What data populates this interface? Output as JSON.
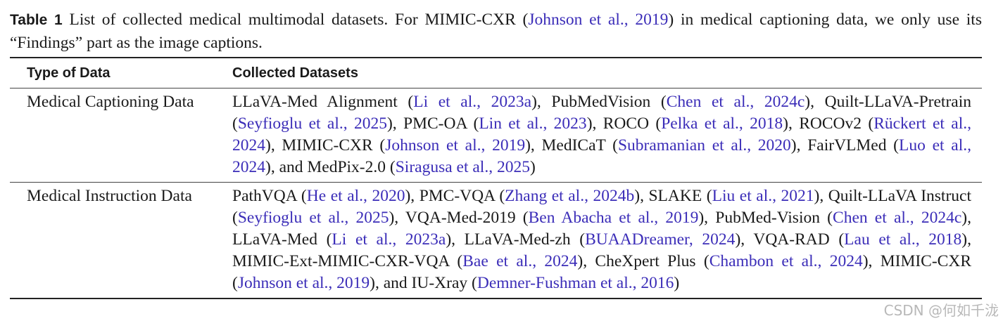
{
  "caption": {
    "label": "Table 1",
    "text_before": " List of collected medical multimodal datasets. For MIMIC-CXR (",
    "cite": "Johnson et al., 2019",
    "text_after": ") in medical captioning data, we only use its “Findings” part as the image captions."
  },
  "table": {
    "headers": [
      "Type of Data",
      "Collected Datasets"
    ],
    "rows": [
      {
        "type": "Medical Captioning Data",
        "parts": [
          {
            "t": "LLaVA-Med Alignment ("
          },
          {
            "t": "Li et al., 2023a",
            "c": true
          },
          {
            "t": "), PubMedVision ("
          },
          {
            "t": "Chen et al., 2024c",
            "c": true
          },
          {
            "t": "), Quilt-LLaVA-Pretrain ("
          },
          {
            "t": "Seyfioglu et al., 2025",
            "c": true
          },
          {
            "t": "), PMC-OA ("
          },
          {
            "t": "Lin et al., 2023",
            "c": true
          },
          {
            "t": "), ROCO ("
          },
          {
            "t": "Pelka et al., 2018",
            "c": true
          },
          {
            "t": "), ROCOv2 ("
          },
          {
            "t": "Rückert et al., 2024",
            "c": true
          },
          {
            "t": "), MIMIC-CXR ("
          },
          {
            "t": "Johnson et al., 2019",
            "c": true
          },
          {
            "t": "), MedICaT ("
          },
          {
            "t": "Subramanian et al., 2020",
            "c": true
          },
          {
            "t": "), FairVLMed ("
          },
          {
            "t": "Luo et al., 2024",
            "c": true
          },
          {
            "t": "), and MedPix-2.0 ("
          },
          {
            "t": "Siragusa et al., 2025",
            "c": true
          },
          {
            "t": ")"
          }
        ]
      },
      {
        "type": "Medical Instruction Data",
        "parts": [
          {
            "t": "PathVQA ("
          },
          {
            "t": "He et al., 2020",
            "c": true
          },
          {
            "t": "), PMC-VQA ("
          },
          {
            "t": "Zhang et al., 2024b",
            "c": true
          },
          {
            "t": "), SLAKE ("
          },
          {
            "t": "Liu et al., 2021",
            "c": true
          },
          {
            "t": "), Quilt-LLaVA Instruct ("
          },
          {
            "t": "Seyfioglu et al., 2025",
            "c": true
          },
          {
            "t": "), VQA-Med-2019 ("
          },
          {
            "t": "Ben Abacha et al., 2019",
            "c": true
          },
          {
            "t": "), PubMed-Vision ("
          },
          {
            "t": "Chen et al., 2024c",
            "c": true
          },
          {
            "t": "), LLaVA-Med ("
          },
          {
            "t": "Li et al., 2023a",
            "c": true
          },
          {
            "t": "), LLaVA-Med-zh ("
          },
          {
            "t": "BUAADreamer, 2024",
            "c": true
          },
          {
            "t": "), VQA-RAD ("
          },
          {
            "t": "Lau et al., 2018",
            "c": true
          },
          {
            "t": "), MIMIC-Ext-MIMIC-CXR-VQA ("
          },
          {
            "t": "Bae et al., 2024",
            "c": true
          },
          {
            "t": "), CheXpert Plus ("
          },
          {
            "t": "Chambon et al., 2024",
            "c": true
          },
          {
            "t": "), MIMIC-CXR ("
          },
          {
            "t": "Johnson et al., 2019",
            "c": true
          },
          {
            "t": "), and IU-Xray ("
          },
          {
            "t": "Demner-Fushman et al., 2016",
            "c": true
          },
          {
            "t": ")"
          }
        ]
      }
    ]
  },
  "watermark": "CSDN @何如千泷",
  "colors": {
    "citation": "#3b2db8",
    "text": "#1a1a1a"
  }
}
